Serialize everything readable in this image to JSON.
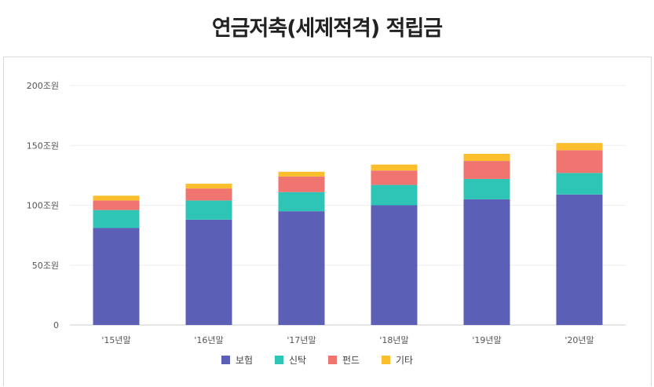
{
  "title": "연금저축(세제적격) 적립금",
  "chart_data": {
    "type": "bar",
    "stacked": true,
    "categories": [
      "'15년말",
      "'16년말",
      "'17년말",
      "'18년말",
      "'19년말",
      "'20년말"
    ],
    "series": [
      {
        "name": "보험",
        "color": "#5b5fb5",
        "values": [
          81,
          88,
          95,
          100,
          105,
          109
        ]
      },
      {
        "name": "신탁",
        "color": "#2ec4b6",
        "values": [
          15,
          16,
          16,
          17,
          17,
          18
        ]
      },
      {
        "name": "펀드",
        "color": "#f07470",
        "values": [
          8,
          10,
          13,
          12,
          15,
          19
        ]
      },
      {
        "name": "기타",
        "color": "#fbbf2d",
        "values": [
          4,
          4,
          4,
          5,
          6,
          6
        ]
      }
    ],
    "yticks": [
      "0",
      "50조원",
      "100조원",
      "150조원",
      "200조원"
    ],
    "ylim": [
      0,
      200
    ],
    "grid": true,
    "legend_position": "bottom"
  }
}
